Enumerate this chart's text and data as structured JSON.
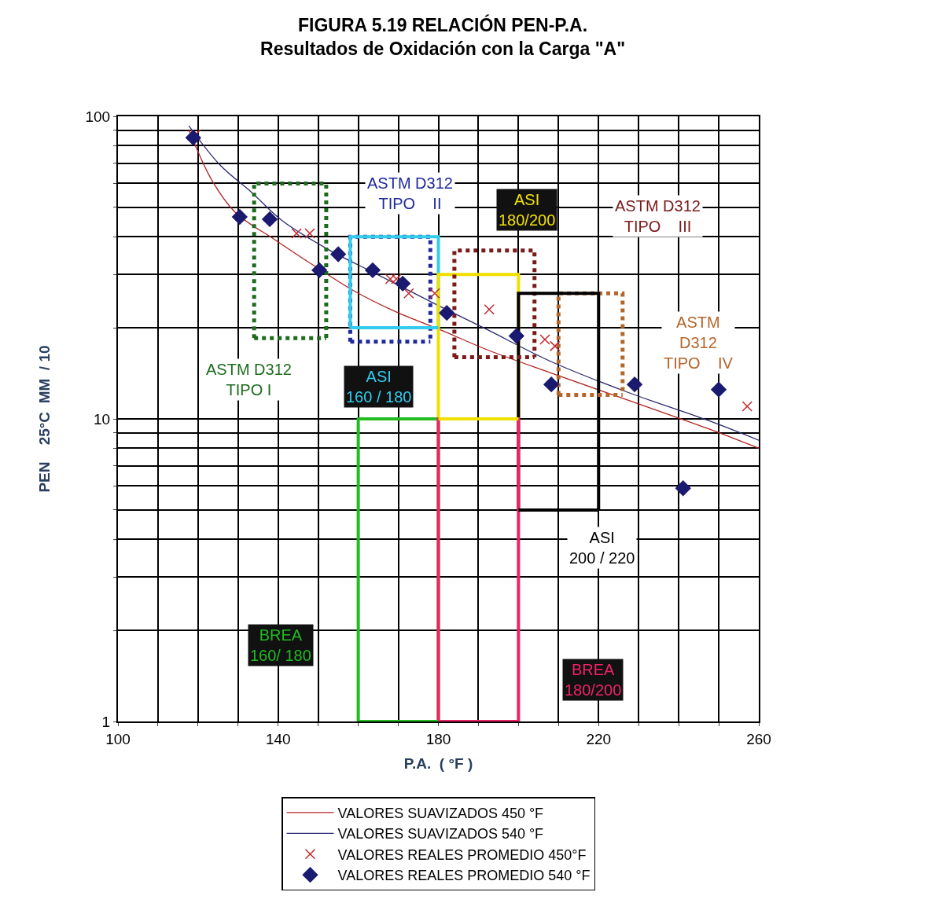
{
  "chart_data": {
    "type": "scatter",
    "title": "FIGURA 5.19 RELACIÓN PEN-P.A.\nResultados de Oxidación con la Carga \"A\"",
    "xlabel": "P.A.  ( °F )",
    "ylabel": "PEN    25°C  MM  / 10",
    "log": "y",
    "grid": true,
    "legend": "bottom",
    "xlim": [
      100,
      260
    ],
    "xticks": [
      100,
      {
        "value": 110,
        "label": null
      },
      {
        "value": 120,
        "label": null
      },
      {
        "value": 130,
        "label": null
      },
      140,
      {
        "value": 150,
        "label": null
      },
      {
        "value": 160,
        "label": null
      },
      {
        "value": 170,
        "label": null
      },
      180,
      {
        "value": 190,
        "label": null
      },
      {
        "value": 200,
        "label": null
      },
      {
        "value": 210,
        "label": null
      },
      220,
      {
        "value": 230,
        "label": null
      },
      {
        "value": 240,
        "label": null
      },
      {
        "value": 250,
        "label": null
      },
      260
    ],
    "ylim": [
      1,
      100
    ],
    "yticks": [
      1,
      {
        "value": 2,
        "label": null
      },
      {
        "value": 3,
        "label": null
      },
      {
        "value": 4,
        "label": null
      },
      {
        "value": 5,
        "label": null
      },
      {
        "value": 6,
        "label": null
      },
      {
        "value": 7,
        "label": null
      },
      {
        "value": 8,
        "label": null
      },
      {
        "value": 9,
        "label": null
      },
      10,
      {
        "value": 20,
        "label": null
      },
      {
        "value": 30,
        "label": null
      },
      {
        "value": 40,
        "label": null
      },
      {
        "value": 50,
        "label": null
      },
      {
        "value": 60,
        "label": null
      },
      {
        "value": 70,
        "label": null
      },
      {
        "value": 80,
        "label": null
      },
      {
        "value": 90,
        "label": null
      },
      100
    ],
    "series": [
      {
        "name": "VALORES REALES PROMEDIO 450°F",
        "marker": "cross",
        "color": "#c0282d",
        "x": [
          119.4,
          144.6,
          147.9,
          168,
          169.5,
          172.6,
          179.1,
          192.7,
          206.6,
          209.1,
          257.1
        ],
        "values": [
          87,
          41,
          41,
          29,
          29,
          26,
          26,
          23,
          18.3,
          17.4,
          11
        ]
      },
      {
        "name": "VALORES REALES PROMEDIO 540 °F",
        "marker": "diamond",
        "color": "#1a1a70",
        "x": [
          118.8,
          130.4,
          137.9,
          150.3,
          155,
          163.6,
          171.1,
          182.1,
          199.5,
          208.2,
          229,
          241.1,
          250
        ],
        "values": [
          85,
          46.5,
          45.7,
          31,
          35,
          31,
          28,
          22.4,
          18.8,
          13,
          13,
          5.9,
          12.5
        ]
      },
      {
        "name": "VALORES SUAVIZADOS 450 °F",
        "type": "line",
        "marker": "none",
        "line_style": "solid",
        "color": "#b22222",
        "x": [
          117.7,
          123.6,
          129.4,
          139.3,
          149.1,
          158.9,
          168.7,
          180.5,
          192.3,
          208,
          227.6,
          247.2,
          260
        ],
        "values": [
          90,
          61,
          48,
          39,
          32,
          26.5,
          22.8,
          19.7,
          16.9,
          14.2,
          11.5,
          9.3,
          8
        ]
      },
      {
        "name": "VALORES SUAVIZADOS 540 °F",
        "type": "line",
        "marker": "none",
        "line_style": "solid",
        "color": "#2a2a6e",
        "x": [
          117.7,
          125.5,
          133.4,
          141.2,
          153,
          164.8,
          180.5,
          192.3,
          208,
          227.6,
          247.2,
          260
        ],
        "values": [
          93,
          69,
          56,
          45,
          36,
          30,
          23.5,
          19.7,
          15.5,
          12.2,
          9.9,
          8.5
        ]
      },
      {
        "type": "line",
        "marker": "none",
        "line_style": "dotted",
        "color": "#1e6b1e",
        "x": [
          134,
          134,
          152,
          152
        ],
        "values": [
          18.5,
          60,
          60,
          18.5
        ]
      },
      {
        "type": "line",
        "marker": "none",
        "line_style": "dotted",
        "color": "#1f2a9c",
        "x": [
          158,
          158,
          178,
          178
        ],
        "values": [
          18,
          40,
          40,
          18
        ]
      },
      {
        "type": "line",
        "marker": "none",
        "line_style": "solid",
        "color": "#33ccee",
        "x": [
          158,
          158,
          180,
          180
        ],
        "values": [
          20,
          40,
          40,
          20
        ]
      },
      {
        "type": "line",
        "marker": "none",
        "line_style": "solid",
        "color": "#f0e000",
        "x": [
          180,
          180,
          200,
          200
        ],
        "values": [
          10,
          30,
          30,
          10
        ]
      },
      {
        "type": "line",
        "marker": "none",
        "line_style": "dotted",
        "color": "#7a1a1a",
        "x": [
          184,
          184,
          204,
          204
        ],
        "values": [
          16,
          36,
          36,
          16
        ]
      },
      {
        "type": "line",
        "marker": "none",
        "line_style": "dotted",
        "color": "#b5652a",
        "x": [
          210,
          210,
          226,
          226
        ],
        "values": [
          12,
          26,
          26,
          12
        ]
      },
      {
        "type": "line",
        "marker": "none",
        "line_style": "solid",
        "color": "#000000",
        "x": [
          200,
          200,
          220,
          220
        ],
        "values": [
          5,
          26,
          26,
          5
        ]
      },
      {
        "type": "line",
        "marker": "none",
        "line_style": "solid",
        "color": "#22bb22",
        "x": [
          160,
          160,
          180,
          180
        ],
        "values": [
          1,
          10,
          10,
          1
        ]
      },
      {
        "type": "line",
        "marker": "none",
        "line_style": "solid",
        "color": "#ee2266",
        "x": [
          180,
          180,
          200,
          200
        ],
        "values": [
          1,
          10,
          10,
          1
        ]
      },
      {
        "type": "line",
        "marker": "none",
        "line_style": "dotted",
        "color": "#1e6b1e",
        "x": [
          134,
          152
        ],
        "values": [
          18.5,
          18.5
        ]
      },
      {
        "type": "line",
        "marker": "none",
        "line_style": "dotted",
        "color": "#1f2a9c",
        "x": [
          158,
          178
        ],
        "values": [
          18,
          18
        ]
      },
      {
        "type": "line",
        "marker": "none",
        "line_style": "solid",
        "color": "#33ccee",
        "x": [
          158,
          180
        ],
        "values": [
          20,
          20
        ]
      },
      {
        "type": "line",
        "marker": "none",
        "line_style": "solid",
        "color": "#f0e000",
        "x": [
          180,
          200
        ],
        "values": [
          10,
          10
        ]
      },
      {
        "type": "line",
        "marker": "none",
        "line_style": "dotted",
        "color": "#7a1a1a",
        "x": [
          184,
          204
        ],
        "values": [
          16,
          16
        ]
      },
      {
        "type": "line",
        "marker": "none",
        "line_style": "dotted",
        "color": "#b5652a",
        "x": [
          210,
          226
        ],
        "values": [
          12,
          12
        ]
      },
      {
        "type": "line",
        "marker": "none",
        "line_style": "solid",
        "color": "#000000",
        "x": [
          200,
          220
        ],
        "values": [
          5,
          5
        ]
      },
      {
        "type": "line",
        "marker": "none",
        "line_style": "solid",
        "color": "#22bb22",
        "x": [
          160,
          180
        ],
        "values": [
          1,
          1
        ]
      },
      {
        "type": "line",
        "marker": "none",
        "line_style": "solid",
        "color": "#ee2266",
        "x": [
          180,
          200
        ],
        "values": [
          1,
          1
        ]
      }
    ],
    "annotations": [
      "ASTM D312\nTIPO I",
      "ASTM D312\nTIPO    II",
      "ASI\n160 / 180",
      "ASI\n180/200",
      "ASTM D312\nTIPO    III",
      "ASTM\nD312\nTIPO    IV",
      "ASI\n200 / 220",
      "BREA\n160/ 180",
      "BREA\n180/200"
    ]
  }
}
